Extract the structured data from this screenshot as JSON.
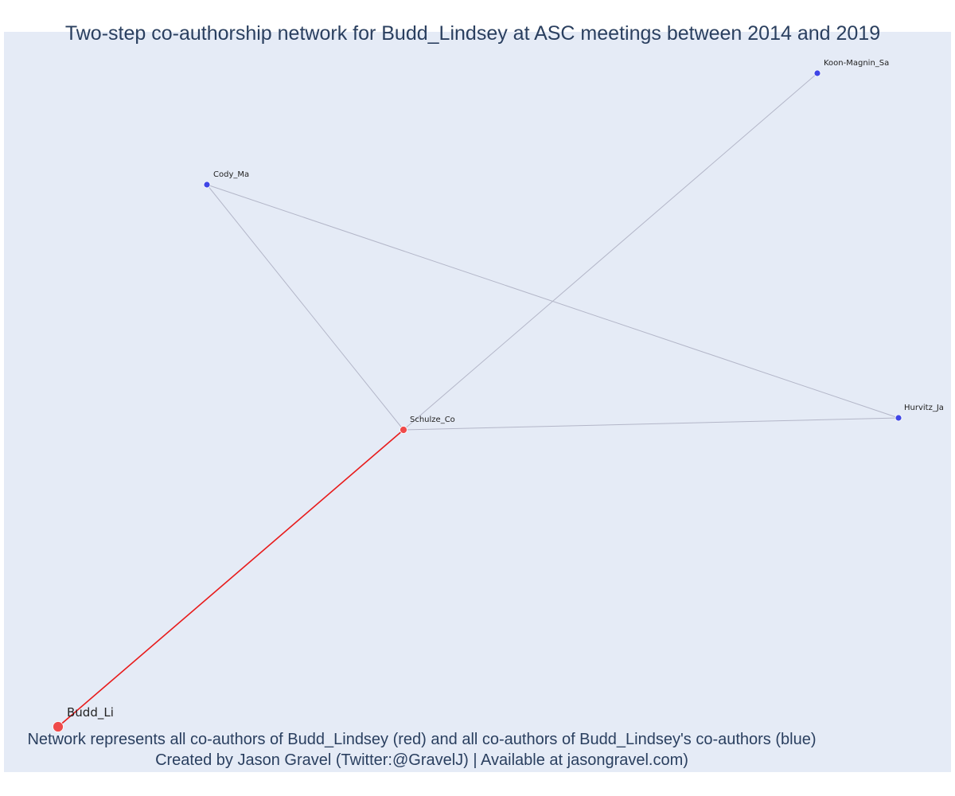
{
  "title": "Two-step co-authorship network for Budd_Lindsey at ASC meetings between 2014 and 2019",
  "captions": {
    "line1": "Network represents all co-authors of Budd_Lindsey (red) and all co-authors of Budd_Lindsey's co-authors (blue)",
    "line2": "Created by Jason Gravel (Twitter:@GravelJ) | Available at jasongravel.com)"
  },
  "colors": {
    "background": "#e5ebf6",
    "title_text": "#2a3f5f",
    "red_node": "#ef4a4a",
    "blue_node": "#3f46e6",
    "red_edge": "#e81b1b",
    "gray_edge": "#b3b6c8"
  },
  "nodes": [
    {
      "id": "budd",
      "label": "Budd_Li",
      "group": "focal",
      "color": "red"
    },
    {
      "id": "schulze",
      "label": "Schulze_Co",
      "group": "co-author",
      "color": "red"
    },
    {
      "id": "cody",
      "label": "Cody_Ma",
      "group": "second-step",
      "color": "blue"
    },
    {
      "id": "koon",
      "label": "Koon-Magnin_Sa",
      "group": "second-step",
      "color": "blue"
    },
    {
      "id": "hurvitz",
      "label": "Hurvitz_Ja",
      "group": "second-step",
      "color": "blue"
    }
  ],
  "edges": [
    {
      "source": "budd",
      "target": "schulze",
      "color": "red"
    },
    {
      "source": "schulze",
      "target": "cody",
      "color": "gray"
    },
    {
      "source": "schulze",
      "target": "koon",
      "color": "gray"
    },
    {
      "source": "schulze",
      "target": "hurvitz",
      "color": "gray"
    },
    {
      "source": "cody",
      "target": "hurvitz",
      "color": "gray"
    }
  ]
}
